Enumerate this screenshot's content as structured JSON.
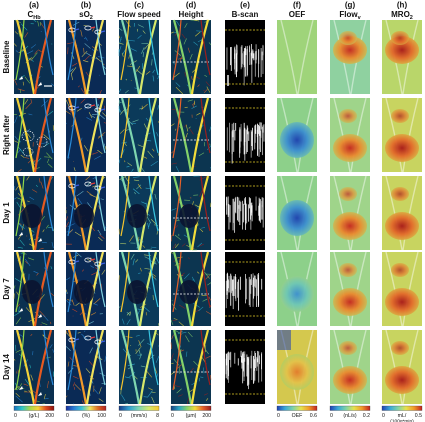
{
  "figure": {
    "panels": [
      {
        "letter": "(a)",
        "title": "C",
        "title_sub": "Hb",
        "colorbar": {
          "min": "0",
          "unit": "(g/L)",
          "max": "200",
          "colors": [
            "#1a6fbf",
            "#2ec7c9",
            "#a8d84a",
            "#f7d23c",
            "#e04a1f",
            "#8a1010"
          ]
        }
      },
      {
        "letter": "(b)",
        "title": "sO",
        "title_sub": "2",
        "colorbar": {
          "min": "0",
          "unit": "(%)",
          "max": "100",
          "colors": [
            "#1a2f9c",
            "#2a7fd6",
            "#3ec7d6",
            "#f1e65a",
            "#e06a26",
            "#b21f1f"
          ]
        }
      },
      {
        "letter": "(c)",
        "title": "Flow speed",
        "title_sub": "",
        "colorbar": {
          "min": "0",
          "unit": "(mm/s)",
          "max": "8",
          "colors": [
            "#163a8a",
            "#2fa0d0",
            "#7ed6b0",
            "#d4e86a",
            "#f7c52c"
          ]
        }
      },
      {
        "letter": "(d)",
        "title": "Height",
        "title_sub": "",
        "colorbar": {
          "min": "0",
          "unit": "(µm)",
          "max": "200",
          "colors": [
            "#14407e",
            "#2aa6c6",
            "#83d26a",
            "#f2dc3a",
            "#e6612a",
            "#9a1e1e"
          ]
        }
      },
      {
        "letter": "(e)",
        "title": "B-scan",
        "title_sub": "",
        "colorbar": null
      },
      {
        "letter": "(f)",
        "title": "OEF",
        "title_sub": "",
        "colorbar": {
          "min": "0",
          "unit": "OEF",
          "max": "0.6",
          "colors": [
            "#1f3fb3",
            "#39a7d8",
            "#7fd3a8",
            "#e6e24e",
            "#f19a2a",
            "#c21f1f"
          ]
        }
      },
      {
        "letter": "(g)",
        "title": "Flow",
        "title_sub": "v",
        "colorbar": {
          "min": "0",
          "unit": "(nL/s)",
          "max": "0.2",
          "colors": [
            "#1f3fb3",
            "#39a7d8",
            "#7fd3a8",
            "#e6e24e",
            "#f19a2a",
            "#c21f1f"
          ]
        }
      },
      {
        "letter": "(h)",
        "title": "MRO",
        "title_sub": "2",
        "colorbar": {
          "min": "0",
          "unit": "mL/",
          "unit2": "(100g*min)",
          "max": "0.5",
          "colors": [
            "#1f3fb3",
            "#39a7d8",
            "#7fd3a8",
            "#e6e24e",
            "#f19a2a",
            "#c21f1f"
          ]
        }
      }
    ],
    "rows": [
      {
        "label": "Baseline"
      },
      {
        "label": "Right after"
      },
      {
        "label": "Day 1"
      },
      {
        "label": "Day 7"
      },
      {
        "label": "Day 14"
      }
    ]
  },
  "colors": {
    "vessel_bg": "#0b2238",
    "bscan_bg": "#000000",
    "dashed_white": "#ffffff",
    "dashed_yellow": "#e9d228",
    "lesion": "#0a1430"
  }
}
